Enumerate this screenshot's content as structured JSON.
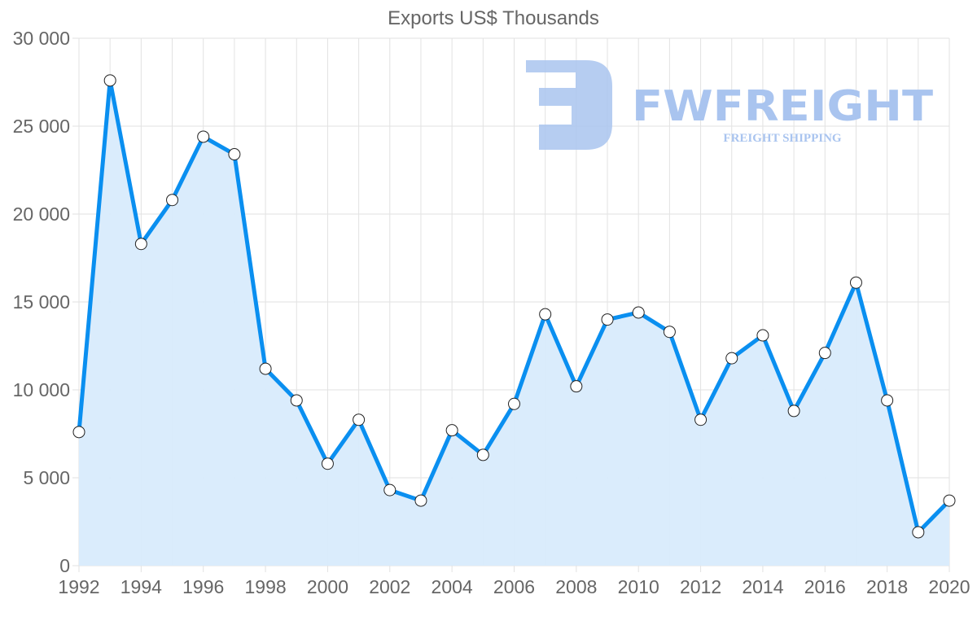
{
  "chart_data": {
    "type": "line",
    "title": "Exports US$ Thousands",
    "xlabel": "",
    "ylabel": "",
    "x": [
      1992,
      1993,
      1994,
      1995,
      1996,
      1997,
      1998,
      1999,
      2000,
      2001,
      2002,
      2003,
      2004,
      2005,
      2006,
      2007,
      2008,
      2009,
      2010,
      2011,
      2012,
      2013,
      2014,
      2015,
      2016,
      2017,
      2018,
      2019,
      2020
    ],
    "series": [
      {
        "name": "Exports US$ Thousands",
        "values": [
          7600,
          27600,
          18300,
          20800,
          24400,
          23400,
          11200,
          9400,
          5800,
          8300,
          4300,
          3700,
          7700,
          6300,
          9200,
          14300,
          10200,
          14000,
          14400,
          13300,
          8300,
          11800,
          13100,
          8800,
          12100,
          16100,
          9400,
          1900,
          3700
        ],
        "fill": true
      }
    ],
    "ylim": [
      0,
      30000
    ],
    "xlim": [
      1992,
      2020
    ],
    "y_ticks": [
      "0",
      "5 000",
      "10 000",
      "15 000",
      "20 000",
      "25 000",
      "30 000"
    ],
    "y_tick_values": [
      0,
      5000,
      10000,
      15000,
      20000,
      25000,
      30000
    ],
    "x_ticks": [
      "1992",
      "1994",
      "1996",
      "1998",
      "2000",
      "2002",
      "2004",
      "2006",
      "2008",
      "2010",
      "2012",
      "2014",
      "2016",
      "2018",
      "2020"
    ],
    "grid": true,
    "legend": "none",
    "colors": {
      "line": "#0a8ff0",
      "fill": "#d8ebfc",
      "point_fill": "#ffffff",
      "point_stroke": "#222222"
    }
  },
  "watermark": {
    "brand": "FWFREIGHT",
    "tagline": "FREIGHT SHIPPING",
    "color": "#a9c4ef"
  }
}
